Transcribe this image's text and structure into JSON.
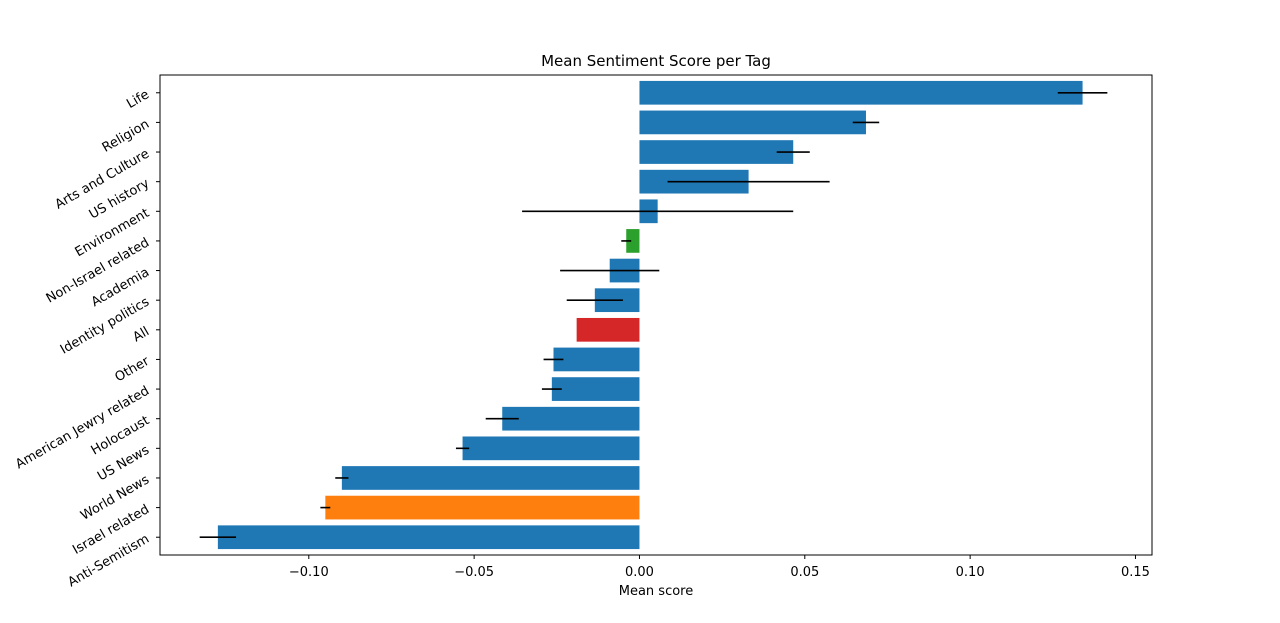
{
  "chart_data": {
    "type": "bar",
    "orientation": "horizontal",
    "title": "Mean Sentiment Score per Tag",
    "xlabel": "Mean score",
    "ylabel": "",
    "xlim": [
      -0.145,
      0.155
    ],
    "xticks": [
      {
        "value": -0.1,
        "label": "−0.10"
      },
      {
        "value": -0.05,
        "label": "−0.05"
      },
      {
        "value": 0.0,
        "label": "0.00"
      },
      {
        "value": 0.05,
        "label": "0.05"
      },
      {
        "value": 0.1,
        "label": "0.10"
      },
      {
        "value": 0.15,
        "label": "0.15"
      }
    ],
    "grid": false,
    "bars": [
      {
        "category": "Anti-Semitism",
        "value": -0.1275,
        "error": 0.0055,
        "color": "#1f77b4"
      },
      {
        "category": "Israel related",
        "value": -0.095,
        "error": 0.0015,
        "color": "#ff7f0e"
      },
      {
        "category": "World News",
        "value": -0.09,
        "error": 0.002,
        "color": "#1f77b4"
      },
      {
        "category": "US News",
        "value": -0.0535,
        "error": 0.002,
        "color": "#1f77b4"
      },
      {
        "category": "Holocaust",
        "value": -0.0415,
        "error": 0.005,
        "color": "#1f77b4"
      },
      {
        "category": "American Jewry related",
        "value": -0.0265,
        "error": 0.003,
        "color": "#1f77b4"
      },
      {
        "category": "Other",
        "value": -0.026,
        "error": 0.003,
        "color": "#1f77b4"
      },
      {
        "category": "All",
        "value": -0.019,
        "error": 0.0,
        "color": "#d62728"
      },
      {
        "category": "Identity politics",
        "value": -0.0135,
        "error": 0.0085,
        "color": "#1f77b4"
      },
      {
        "category": "Academia",
        "value": -0.009,
        "error": 0.015,
        "color": "#1f77b4"
      },
      {
        "category": "Non-Israel related",
        "value": -0.004,
        "error": 0.0015,
        "color": "#2ca02c"
      },
      {
        "category": "Environment",
        "value": 0.0055,
        "error": 0.041,
        "color": "#1f77b4"
      },
      {
        "category": "US history",
        "value": 0.033,
        "error": 0.0245,
        "color": "#1f77b4"
      },
      {
        "category": "Arts and Culture",
        "value": 0.0465,
        "error": 0.005,
        "color": "#1f77b4"
      },
      {
        "category": "Religion",
        "value": 0.0685,
        "error": 0.004,
        "color": "#1f77b4"
      },
      {
        "category": "Life",
        "value": 0.134,
        "error": 0.0075,
        "color": "#1f77b4"
      }
    ]
  }
}
